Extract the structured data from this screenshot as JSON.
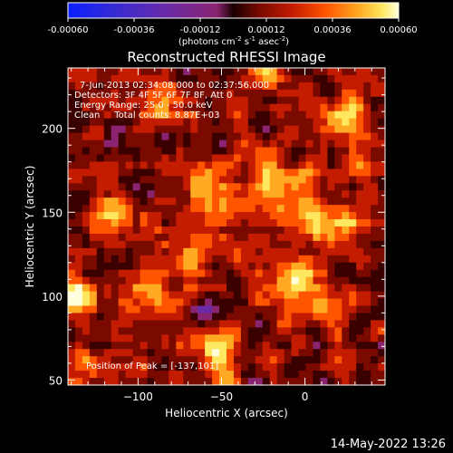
{
  "colorbar": {
    "ticks": [
      "-0.00060",
      "-0.00036",
      "-0.00012",
      "0.00012",
      "0.00036",
      "0.00060"
    ],
    "unit_prefix": "(photons cm",
    "unit_exp1": "-2",
    "unit_mid": " s",
    "unit_exp2": "-1",
    "unit_mid2": " asec",
    "unit_exp3": "-2",
    "unit_suffix": ")"
  },
  "info": {
    "time_range": "7-Jun-2013 02:34:08.000 to 02:37:56.000",
    "detectors": "Detectors: 3F 4F 5F 6F 7F 8F, Att 0",
    "energy": "Energy Range: 25.0 - 50.0 keV",
    "clean": "Clean     Total counts: 8.87E+03",
    "peak": "Position of Peak = [-137,101]"
  },
  "footer": {
    "date": "14-May-2022 13:26"
  },
  "chart_data": {
    "type": "heatmap",
    "title": "Reconstructed RHESSI Image",
    "xlabel": "Heliocentric X (arcsec)",
    "ylabel": "Heliocentric Y (arcsec)",
    "xlim": [
      -142,
      48
    ],
    "ylim": [
      47,
      236
    ],
    "xticks": [
      -100,
      -50,
      0
    ],
    "yticks": [
      50,
      100,
      150,
      200
    ],
    "colorbar_range": [
      -0.0006,
      0.0006
    ],
    "colormap": [
      "#0a1eff",
      "#3a2bd1",
      "#6a2aa6",
      "#8a2470",
      "#3a0000",
      "#7a0a00",
      "#c41c00",
      "#ff5500",
      "#ffaa22",
      "#ffe860",
      "#ffffdc"
    ],
    "grid": false
  }
}
